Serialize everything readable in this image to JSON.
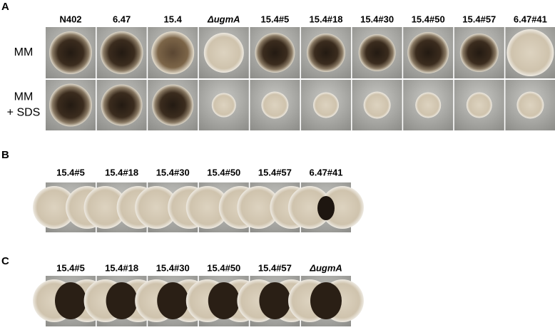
{
  "panels": [
    {
      "label": "A",
      "columns": [
        "N402",
        "6.47",
        "15.4",
        "ΔugmA",
        "15.4#5",
        "15.4#18",
        "15.4#30",
        "15.4#50",
        "15.4#57",
        "6.47#41"
      ],
      "rows": [
        [
          "MM"
        ],
        [
          "MM",
          "+ SDS"
        ]
      ]
    },
    {
      "label": "B",
      "columns": [
        "15.4#5",
        "15.4#18",
        "15.4#30",
        "15.4#50",
        "15.4#57",
        "6.47#41"
      ]
    },
    {
      "label": "C",
      "columns": [
        "15.4#5",
        "15.4#18",
        "15.4#30",
        "15.4#50",
        "15.4#57",
        "ΔugmA"
      ]
    }
  ]
}
